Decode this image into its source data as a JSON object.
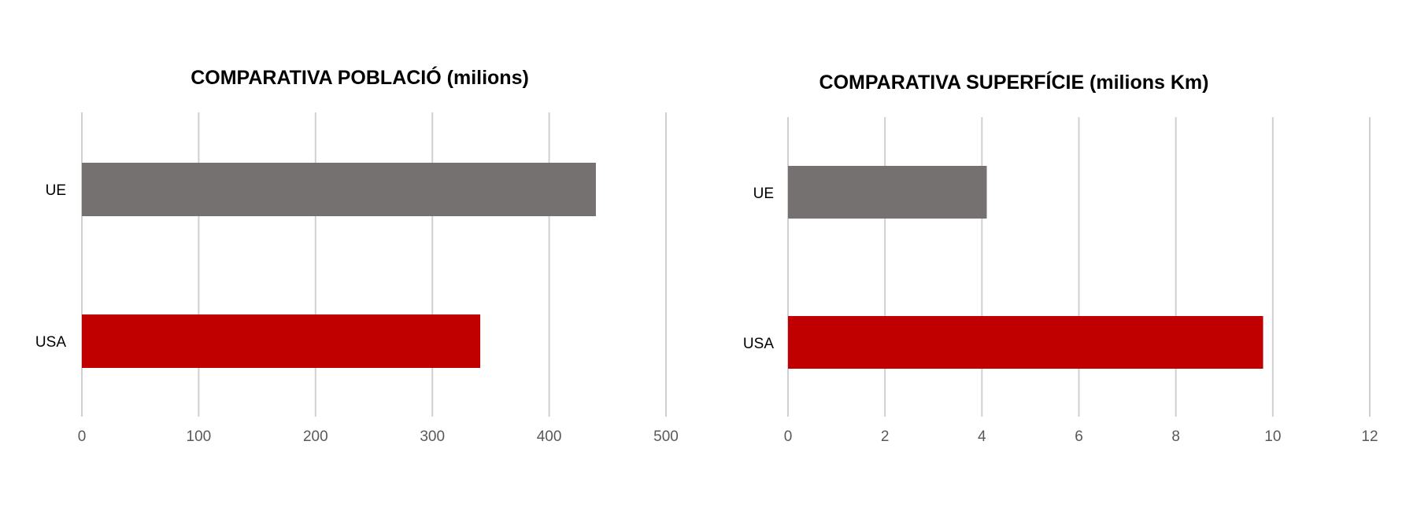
{
  "chart_data": [
    {
      "type": "bar",
      "orientation": "horizontal",
      "title": "COMPARATIVA POBLACIÓ (milions)",
      "categories": [
        "UE",
        "USA"
      ],
      "values": [
        440,
        341
      ],
      "colors": [
        "#767171",
        "#c00000"
      ],
      "xticks": [
        "0",
        "100",
        "200",
        "300",
        "400",
        "500"
      ],
      "xlim": [
        0,
        500
      ],
      "grid": true,
      "legend": "none"
    },
    {
      "type": "bar",
      "orientation": "horizontal",
      "title": "COMPARATIVA SUPERFÍCIE (milions Km)",
      "categories": [
        "UE",
        "USA"
      ],
      "values": [
        4.1,
        9.8
      ],
      "colors": [
        "#767171",
        "#c00000"
      ],
      "xticks": [
        "0",
        "2",
        "4",
        "6",
        "8",
        "10",
        "12"
      ],
      "xlim": [
        0,
        12
      ],
      "grid": true,
      "legend": "none"
    }
  ]
}
